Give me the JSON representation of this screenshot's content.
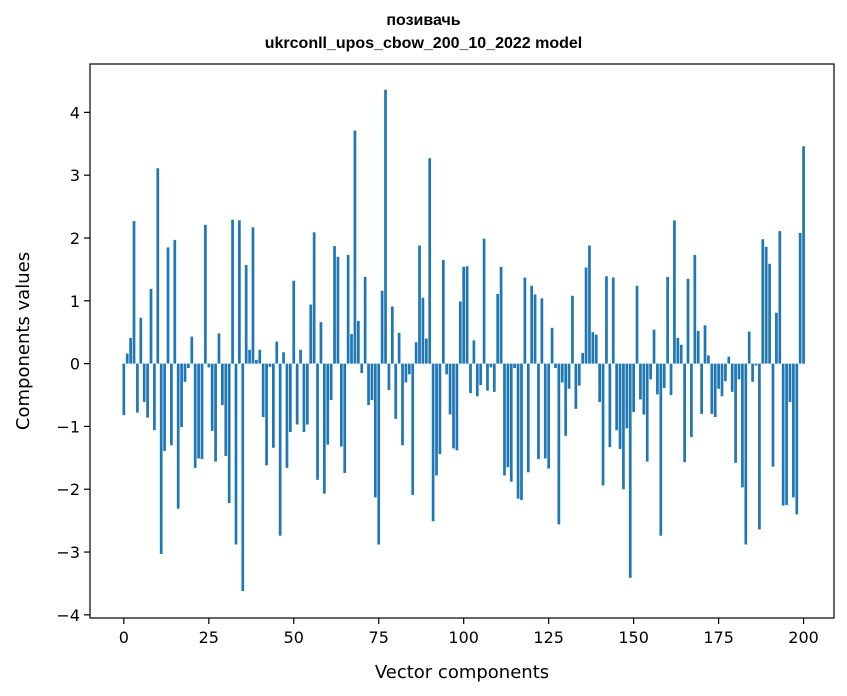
{
  "chart_data": {
    "type": "bar",
    "title_line1": "позивачь",
    "title_line2": "ukrconll_upos_cbow_200_10_2022 model",
    "xlabel": "Vector components",
    "ylabel": "Components values",
    "xlim": [
      -9.95,
      208.95
    ],
    "ylim": [
      -4.05,
      4.77
    ],
    "xticks": [
      0,
      25,
      50,
      75,
      100,
      125,
      150,
      175,
      200
    ],
    "yticks": [
      -4,
      -3,
      -2,
      -1,
      0,
      1,
      2,
      3,
      4
    ],
    "bar_color": "#1f77b4",
    "grid": false,
    "values": [
      -0.82,
      0.16,
      0.41,
      2.27,
      -0.78,
      0.73,
      -0.61,
      -0.86,
      1.19,
      -1.06,
      3.11,
      -3.03,
      -1.39,
      1.85,
      -1.3,
      1.97,
      -2.31,
      -1.01,
      -0.29,
      -0.07,
      0.43,
      -1.66,
      -1.51,
      -1.52,
      2.21,
      -0.06,
      -1.07,
      -1.56,
      0.48,
      -0.66,
      -1.47,
      -2.22,
      2.29,
      -2.88,
      2.28,
      -3.62,
      1.57,
      0.22,
      2.17,
      0.06,
      0.22,
      -0.85,
      -1.62,
      -0.05,
      -1.34,
      0.35,
      -2.74,
      0.18,
      -1.66,
      -1.09,
      1.32,
      -0.97,
      0.22,
      -1.09,
      -0.97,
      0.94,
      2.09,
      -1.85,
      0.66,
      -2.07,
      -1.29,
      -0.58,
      1.87,
      1.7,
      -1.32,
      -1.74,
      1.73,
      0.47,
      3.71,
      0.68,
      -0.15,
      1.38,
      -0.66,
      -0.58,
      -2.13,
      -2.88,
      1.16,
      4.36,
      -0.42,
      0.91,
      -0.88,
      0.49,
      -1.3,
      -0.3,
      -0.17,
      -2.09,
      0.34,
      1.88,
      1.05,
      0.4,
      3.27,
      -2.51,
      -1.78,
      -1.44,
      1.65,
      -0.17,
      -0.81,
      -1.35,
      -1.38,
      0.99,
      1.54,
      1.55,
      -0.47,
      0.37,
      -0.52,
      -0.34,
      1.99,
      -0.43,
      -0.06,
      -0.45,
      1.11,
      1.54,
      -1.78,
      -1.65,
      -1.88,
      -0.07,
      -2.15,
      -2.17,
      1.37,
      -1.73,
      1.24,
      1.1,
      -1.52,
      1.04,
      -1.51,
      -1.67,
      0.57,
      -0.07,
      -2.56,
      -0.3,
      -1.15,
      -0.4,
      1.08,
      -0.72,
      -0.35,
      0.17,
      1.53,
      1.88,
      0.5,
      0.46,
      -0.61,
      -1.94,
      1.39,
      -1.33,
      1.37,
      -1.06,
      -1.36,
      -2.0,
      -1.03,
      -3.41,
      -0.77,
      1.24,
      -0.57,
      -0.81,
      -1.56,
      -0.25,
      0.54,
      -0.49,
      -2.74,
      -0.39,
      1.38,
      -0.5,
      2.28,
      0.41,
      0.3,
      -1.57,
      1.35,
      -1.17,
      1.73,
      0.52,
      -0.8,
      0.61,
      0.13,
      -0.8,
      -0.85,
      -0.4,
      -0.52,
      -0.28,
      0.11,
      -0.45,
      -1.58,
      -0.25,
      -1.97,
      -2.88,
      0.51,
      -0.29,
      -0.03,
      -2.64,
      1.98,
      1.86,
      1.59,
      -1.64,
      0.81,
      2.11,
      -2.26,
      -2.25,
      -0.61,
      -2.13,
      -2.4,
      2.08,
      3.46
    ]
  }
}
